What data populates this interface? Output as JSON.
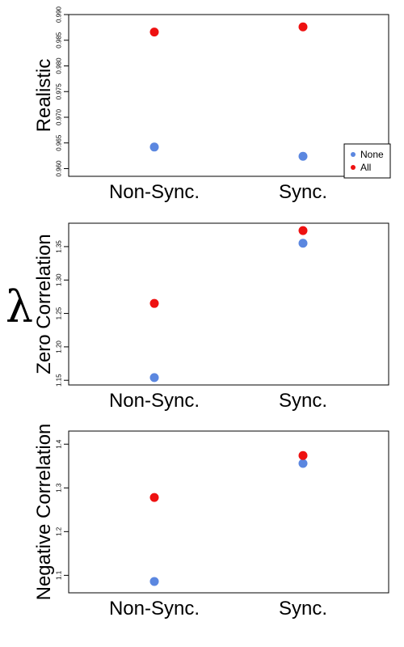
{
  "figure": {
    "shared_ylabel": "λ"
  },
  "colors": {
    "None": "#5b87e0",
    "All": "#ee1111"
  },
  "chart_data": [
    {
      "type": "scatter",
      "title": "",
      "ylabel": "Realistic",
      "xlabel": "",
      "categories": [
        "Non-Sync.",
        "Sync."
      ],
      "ylim": [
        0.9585,
        0.99
      ],
      "yticks": [
        0.96,
        0.965,
        0.97,
        0.975,
        0.98,
        0.985,
        0.99
      ],
      "ytick_labels": [
        "0.960",
        "0.965",
        "0.970",
        "0.975",
        "0.980",
        "0.985",
        "0.990"
      ],
      "series": [
        {
          "name": "None",
          "values": [
            0.9642,
            0.9624
          ]
        },
        {
          "name": "All",
          "values": [
            0.9866,
            0.9876
          ]
        }
      ],
      "legend": {
        "show": true,
        "placement": "bottom-right"
      },
      "grid": false
    },
    {
      "type": "scatter",
      "title": "",
      "ylabel": "Zero Correlation",
      "xlabel": "",
      "categories": [
        "Non-Sync.",
        "Sync."
      ],
      "ylim": [
        1.143,
        1.385
      ],
      "yticks": [
        1.15,
        1.2,
        1.25,
        1.3,
        1.35
      ],
      "ytick_labels": [
        "1.15",
        "1.20",
        "1.25",
        "1.30",
        "1.35"
      ],
      "series": [
        {
          "name": "None",
          "values": [
            1.154,
            1.355
          ]
        },
        {
          "name": "All",
          "values": [
            1.265,
            1.374
          ]
        }
      ],
      "legend": {
        "show": false
      },
      "grid": false
    },
    {
      "type": "scatter",
      "title": "",
      "ylabel": "Negative Correlation",
      "xlabel": "",
      "categories": [
        "Non-Sync.",
        "Sync."
      ],
      "ylim": [
        1.06,
        1.43
      ],
      "yticks": [
        1.1,
        1.2,
        1.3,
        1.4
      ],
      "ytick_labels": [
        "1.1",
        "1.2",
        "1.3",
        "1.4"
      ],
      "series": [
        {
          "name": "None",
          "values": [
            1.086,
            1.356
          ]
        },
        {
          "name": "All",
          "values": [
            1.278,
            1.374
          ]
        }
      ],
      "legend": {
        "show": false
      },
      "grid": false
    }
  ]
}
